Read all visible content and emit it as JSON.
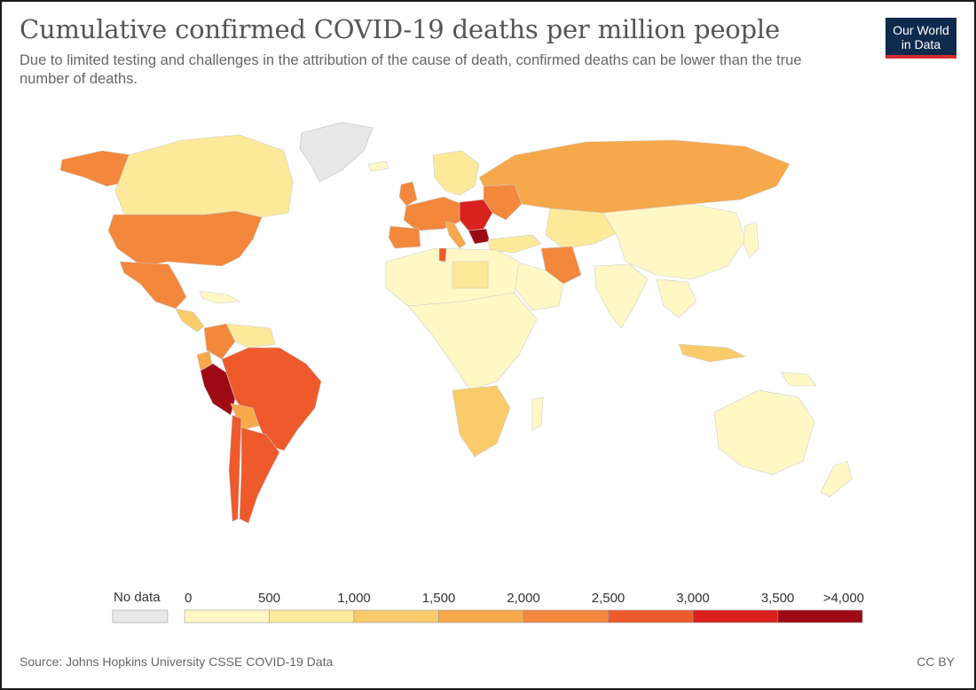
{
  "title": "Cumulative confirmed COVID-19 deaths per million people",
  "subtitle": "Due to limited testing and challenges in the attribution of the cause of death, confirmed deaths can be lower than the true number of deaths.",
  "logo": {
    "line1": "Our World",
    "line2": "in Data"
  },
  "legend": {
    "no_data_label": "No data",
    "no_data_color": "#e8e8e8",
    "ticks": [
      "0",
      "500",
      "1,000",
      "1,500",
      "2,000",
      "2,500",
      "3,000",
      "3,500",
      ">4,000"
    ],
    "colors": [
      "#fff8c5",
      "#fde99a",
      "#f9cb6b",
      "#f7a84a",
      "#f3873c",
      "#ee5a2c",
      "#d9211e",
      "#9e0a14"
    ]
  },
  "source": "Source: Johns Hopkins University CSSE COVID-19 Data",
  "license": "CC BY"
}
